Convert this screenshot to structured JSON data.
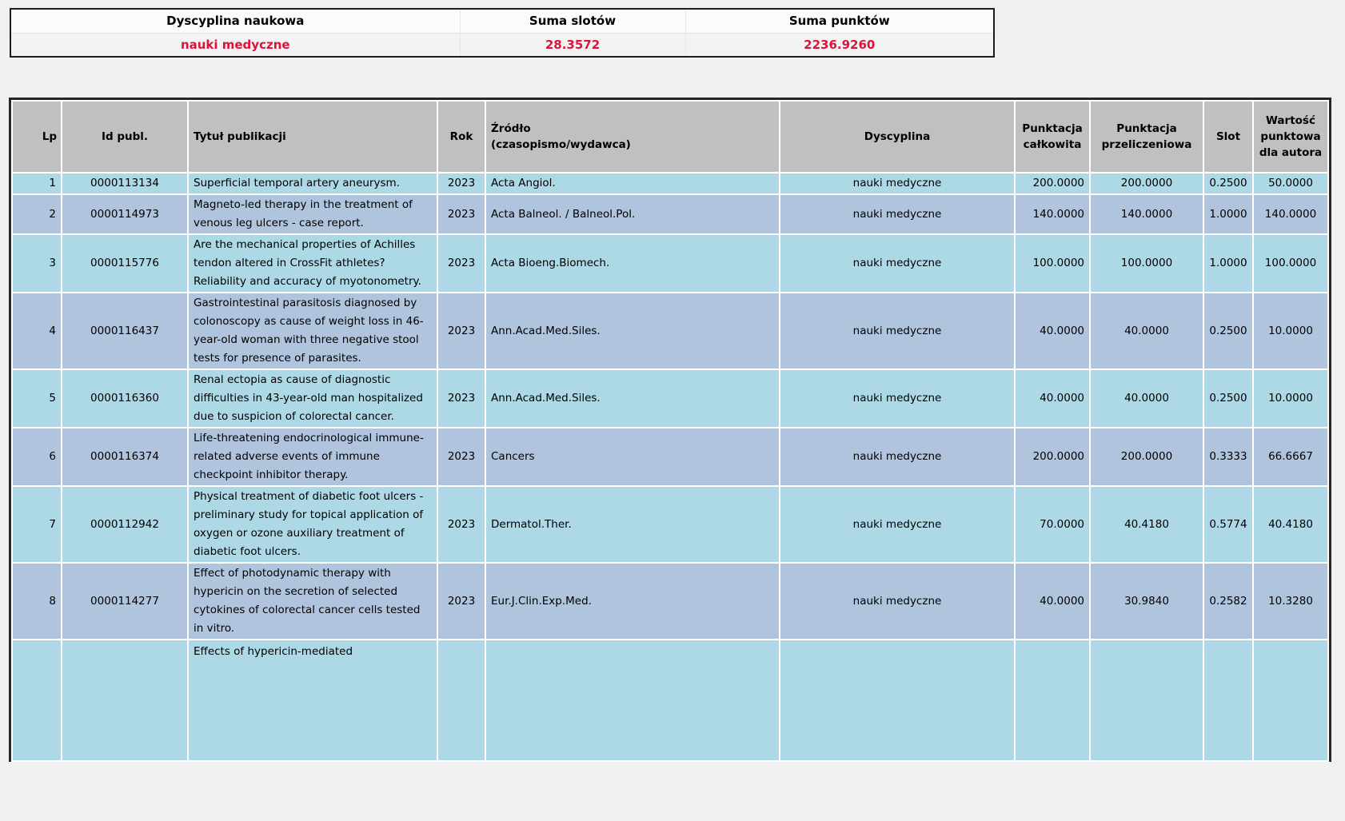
{
  "summary": {
    "columns": [
      "Dyscyplina naukowa",
      "Suma slotów",
      "Suma punktów"
    ],
    "values": [
      "nauki medyczne",
      "28.3572",
      "2236.9260"
    ],
    "accent_color": "#dc143c"
  },
  "publications": {
    "columns": [
      "Lp",
      "Id publ.",
      "Tytuł publikacji",
      "Rok",
      "Źródło\n(czasopismo/wydawca)",
      "Dyscyplina",
      "Punktacja całkowita",
      "Punktacja przeliczeniowa",
      "Slot",
      "Wartość punktowa dla autora"
    ],
    "rows": [
      {
        "lp": "1",
        "id": "0000113134",
        "title": "Superficial temporal artery aneurysm.",
        "year": "2023",
        "source": "Acta Angiol.",
        "discipline": "nauki medyczne",
        "total": "200.0000",
        "converted": "200.0000",
        "slot": "0.2500",
        "author_value": "50.0000"
      },
      {
        "lp": "2",
        "id": "0000114973",
        "title": "Magneto-led therapy in the treatment of venous leg ulcers - case report.",
        "year": "2023",
        "source": "Acta Balneol. / Balneol.Pol.",
        "discipline": "nauki medyczne",
        "total": "140.0000",
        "converted": "140.0000",
        "slot": "1.0000",
        "author_value": "140.0000"
      },
      {
        "lp": "3",
        "id": "0000115776",
        "title": "Are the mechanical properties of Achilles tendon altered in CrossFit athletes? Reliability and accuracy of myotonometry.",
        "year": "2023",
        "source": "Acta Bioeng.Biomech.",
        "discipline": "nauki medyczne",
        "total": "100.0000",
        "converted": "100.0000",
        "slot": "1.0000",
        "author_value": "100.0000"
      },
      {
        "lp": "4",
        "id": "0000116437",
        "title": "Gastrointestinal parasitosis diagnosed by colonoscopy as cause of weight loss in 46-year-old woman with three negative stool tests for presence of parasites.",
        "year": "2023",
        "source": "Ann.Acad.Med.Siles.",
        "discipline": "nauki medyczne",
        "total": "40.0000",
        "converted": "40.0000",
        "slot": "0.2500",
        "author_value": "10.0000"
      },
      {
        "lp": "5",
        "id": "0000116360",
        "title": "Renal ectopia as cause of diagnostic difficulties in 43-year-old man hospitalized due to suspicion of colorectal cancer.",
        "year": "2023",
        "source": "Ann.Acad.Med.Siles.",
        "discipline": "nauki medyczne",
        "total": "40.0000",
        "converted": "40.0000",
        "slot": "0.2500",
        "author_value": "10.0000"
      },
      {
        "lp": "6",
        "id": "0000116374",
        "title": "Life-threatening endocrinological immune-related adverse events of immune checkpoint inhibitor therapy.",
        "year": "2023",
        "source": "Cancers",
        "discipline": "nauki medyczne",
        "total": "200.0000",
        "converted": "200.0000",
        "slot": "0.3333",
        "author_value": "66.6667"
      },
      {
        "lp": "7",
        "id": "0000112942",
        "title": "Physical treatment of diabetic foot ulcers - preliminary study for topical application of oxygen or ozone auxiliary treatment of diabetic foot ulcers.",
        "year": "2023",
        "source": "Dermatol.Ther.",
        "discipline": "nauki medyczne",
        "total": "70.0000",
        "converted": "40.4180",
        "slot": "0.5774",
        "author_value": "40.4180"
      },
      {
        "lp": "8",
        "id": "0000114277",
        "title": "Effect of photodynamic therapy with hypericin on the secretion of selected cytokines of colorectal cancer cells tested in vitro.",
        "year": "2023",
        "source": "Eur.J.Clin.Exp.Med.",
        "discipline": "nauki medyczne",
        "total": "40.0000",
        "converted": "30.9840",
        "slot": "0.2582",
        "author_value": "10.3280"
      },
      {
        "lp": "",
        "id": "",
        "title": "Effects of hypericin-mediated",
        "year": "",
        "source": "",
        "discipline": "",
        "total": "",
        "converted": "",
        "slot": "",
        "author_value": ""
      }
    ]
  }
}
